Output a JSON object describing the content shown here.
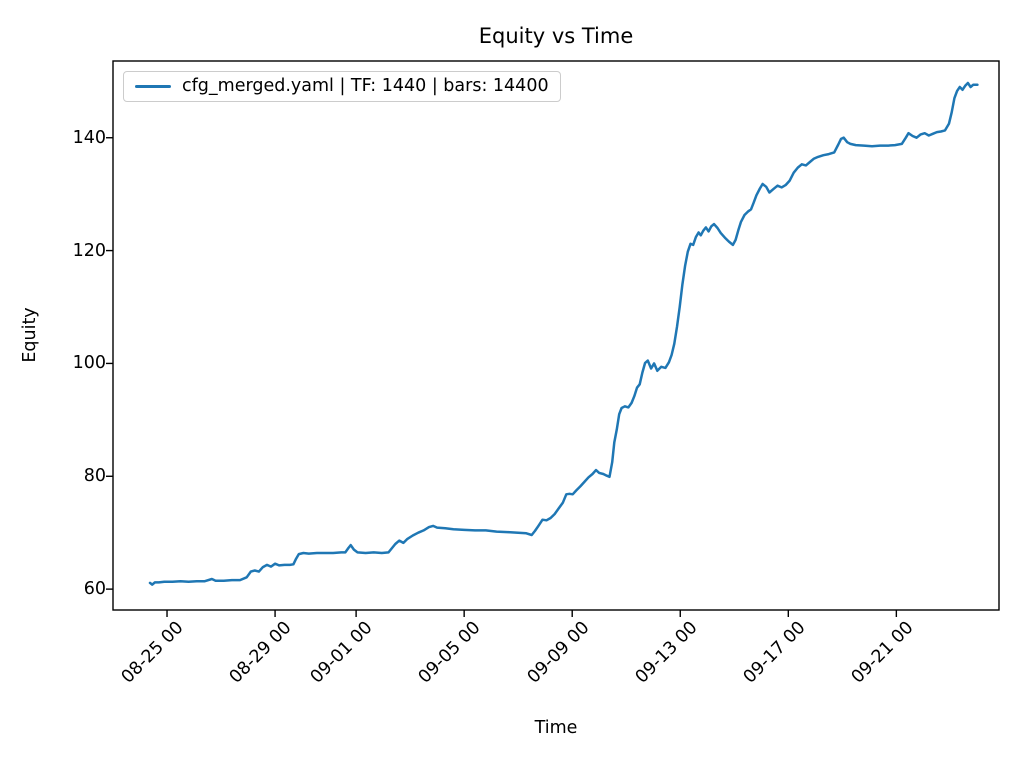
{
  "chart_data": {
    "type": "line",
    "title": "Equity vs Time",
    "xlabel": "Time",
    "ylabel": "Equity",
    "grid": false,
    "legend_position": "upper left",
    "x_axis": {
      "unit": "days relative to 08-25 00:00",
      "lim": [
        -2.0,
        30.8
      ],
      "ticks": [
        {
          "pos": 0,
          "label": "08-25 00"
        },
        {
          "pos": 4,
          "label": "08-29 00"
        },
        {
          "pos": 7,
          "label": "09-01 00"
        },
        {
          "pos": 11,
          "label": "09-05 00"
        },
        {
          "pos": 15,
          "label": "09-09 00"
        },
        {
          "pos": 19,
          "label": "09-13 00"
        },
        {
          "pos": 23,
          "label": "09-17 00"
        },
        {
          "pos": 27,
          "label": "09-21 00"
        }
      ]
    },
    "y_axis": {
      "lim": [
        56.3,
        153.6
      ],
      "ticks": [
        60,
        80,
        100,
        120,
        140
      ]
    },
    "series": [
      {
        "name": "cfg_merged.yaml | TF: 1440 | bars: 14400",
        "color": "#1f77b4",
        "points": [
          [
            -0.63,
            61.1
          ],
          [
            -0.55,
            60.8
          ],
          [
            -0.45,
            61.2
          ],
          [
            -0.3,
            61.2
          ],
          [
            -0.1,
            61.3
          ],
          [
            0.2,
            61.3
          ],
          [
            0.5,
            61.4
          ],
          [
            0.8,
            61.3
          ],
          [
            1.1,
            61.4
          ],
          [
            1.4,
            61.4
          ],
          [
            1.66,
            61.8
          ],
          [
            1.8,
            61.5
          ],
          [
            2.1,
            61.5
          ],
          [
            2.4,
            61.6
          ],
          [
            2.7,
            61.6
          ],
          [
            2.95,
            62.1
          ],
          [
            3.1,
            63.1
          ],
          [
            3.25,
            63.3
          ],
          [
            3.4,
            63.1
          ],
          [
            3.55,
            63.9
          ],
          [
            3.7,
            64.3
          ],
          [
            3.85,
            64.0
          ],
          [
            4.0,
            64.5
          ],
          [
            4.15,
            64.2
          ],
          [
            4.35,
            64.3
          ],
          [
            4.55,
            64.3
          ],
          [
            4.68,
            64.4
          ],
          [
            4.78,
            65.4
          ],
          [
            4.88,
            66.2
          ],
          [
            5.05,
            66.4
          ],
          [
            5.25,
            66.3
          ],
          [
            5.55,
            66.4
          ],
          [
            5.85,
            66.4
          ],
          [
            6.15,
            66.4
          ],
          [
            6.45,
            66.5
          ],
          [
            6.6,
            66.5
          ],
          [
            6.72,
            67.3
          ],
          [
            6.8,
            67.8
          ],
          [
            6.92,
            67.0
          ],
          [
            7.05,
            66.5
          ],
          [
            7.35,
            66.4
          ],
          [
            7.65,
            66.5
          ],
          [
            7.95,
            66.4
          ],
          [
            8.2,
            66.5
          ],
          [
            8.45,
            68.0
          ],
          [
            8.6,
            68.6
          ],
          [
            8.75,
            68.2
          ],
          [
            8.9,
            68.9
          ],
          [
            9.1,
            69.5
          ],
          [
            9.3,
            70.0
          ],
          [
            9.5,
            70.4
          ],
          [
            9.7,
            71.0
          ],
          [
            9.85,
            71.2
          ],
          [
            10.0,
            70.9
          ],
          [
            10.3,
            70.8
          ],
          [
            10.6,
            70.6
          ],
          [
            11.0,
            70.5
          ],
          [
            11.4,
            70.4
          ],
          [
            11.8,
            70.4
          ],
          [
            12.2,
            70.2
          ],
          [
            12.6,
            70.1
          ],
          [
            13.0,
            70.0
          ],
          [
            13.3,
            69.9
          ],
          [
            13.5,
            69.6
          ],
          [
            13.62,
            70.3
          ],
          [
            13.75,
            71.2
          ],
          [
            13.9,
            72.3
          ],
          [
            14.05,
            72.2
          ],
          [
            14.2,
            72.6
          ],
          [
            14.35,
            73.3
          ],
          [
            14.5,
            74.3
          ],
          [
            14.65,
            75.3
          ],
          [
            14.78,
            76.8
          ],
          [
            14.9,
            76.9
          ],
          [
            15.02,
            76.8
          ],
          [
            15.15,
            77.5
          ],
          [
            15.3,
            78.2
          ],
          [
            15.45,
            79.0
          ],
          [
            15.6,
            79.8
          ],
          [
            15.75,
            80.4
          ],
          [
            15.88,
            81.1
          ],
          [
            16.0,
            80.6
          ],
          [
            16.15,
            80.4
          ],
          [
            16.28,
            80.1
          ],
          [
            16.38,
            79.9
          ],
          [
            16.48,
            82.5
          ],
          [
            16.56,
            86.0
          ],
          [
            16.65,
            88.3
          ],
          [
            16.74,
            91.0
          ],
          [
            16.83,
            92.1
          ],
          [
            16.95,
            92.4
          ],
          [
            17.08,
            92.2
          ],
          [
            17.2,
            93.0
          ],
          [
            17.3,
            94.2
          ],
          [
            17.4,
            95.7
          ],
          [
            17.5,
            96.3
          ],
          [
            17.6,
            98.4
          ],
          [
            17.7,
            100.1
          ],
          [
            17.8,
            100.5
          ],
          [
            17.92,
            99.1
          ],
          [
            18.03,
            100.0
          ],
          [
            18.15,
            98.7
          ],
          [
            18.3,
            99.4
          ],
          [
            18.45,
            99.2
          ],
          [
            18.58,
            100.2
          ],
          [
            18.68,
            101.5
          ],
          [
            18.78,
            103.5
          ],
          [
            18.88,
            106.5
          ],
          [
            18.98,
            110.0
          ],
          [
            19.08,
            114.0
          ],
          [
            19.18,
            117.3
          ],
          [
            19.28,
            119.8
          ],
          [
            19.38,
            121.2
          ],
          [
            19.48,
            121.0
          ],
          [
            19.58,
            122.4
          ],
          [
            19.68,
            123.2
          ],
          [
            19.76,
            122.7
          ],
          [
            19.85,
            123.5
          ],
          [
            19.95,
            124.1
          ],
          [
            20.05,
            123.4
          ],
          [
            20.15,
            124.3
          ],
          [
            20.25,
            124.7
          ],
          [
            20.38,
            124.0
          ],
          [
            20.5,
            123.1
          ],
          [
            20.65,
            122.3
          ],
          [
            20.8,
            121.6
          ],
          [
            20.95,
            121.0
          ],
          [
            21.05,
            121.9
          ],
          [
            21.15,
            123.6
          ],
          [
            21.25,
            125.1
          ],
          [
            21.38,
            126.3
          ],
          [
            21.5,
            126.9
          ],
          [
            21.62,
            127.3
          ],
          [
            21.72,
            128.5
          ],
          [
            21.82,
            129.8
          ],
          [
            21.95,
            131.0
          ],
          [
            22.05,
            131.8
          ],
          [
            22.18,
            131.3
          ],
          [
            22.3,
            130.3
          ],
          [
            22.45,
            130.9
          ],
          [
            22.6,
            131.5
          ],
          [
            22.75,
            131.2
          ],
          [
            22.9,
            131.6
          ],
          [
            23.05,
            132.4
          ],
          [
            23.2,
            133.8
          ],
          [
            23.35,
            134.7
          ],
          [
            23.5,
            135.3
          ],
          [
            23.65,
            135.1
          ],
          [
            23.8,
            135.7
          ],
          [
            23.95,
            136.3
          ],
          [
            24.1,
            136.6
          ],
          [
            24.3,
            136.9
          ],
          [
            24.5,
            137.1
          ],
          [
            24.7,
            137.4
          ],
          [
            24.85,
            138.8
          ],
          [
            24.95,
            139.8
          ],
          [
            25.05,
            140.0
          ],
          [
            25.18,
            139.2
          ],
          [
            25.3,
            138.9
          ],
          [
            25.5,
            138.7
          ],
          [
            25.8,
            138.6
          ],
          [
            26.1,
            138.5
          ],
          [
            26.4,
            138.6
          ],
          [
            26.7,
            138.6
          ],
          [
            26.95,
            138.7
          ],
          [
            27.2,
            138.9
          ],
          [
            27.35,
            140.0
          ],
          [
            27.45,
            140.8
          ],
          [
            27.6,
            140.3
          ],
          [
            27.75,
            140.0
          ],
          [
            27.9,
            140.6
          ],
          [
            28.05,
            140.8
          ],
          [
            28.2,
            140.4
          ],
          [
            28.35,
            140.7
          ],
          [
            28.5,
            141.0
          ],
          [
            28.65,
            141.1
          ],
          [
            28.8,
            141.3
          ],
          [
            28.95,
            142.5
          ],
          [
            29.05,
            144.5
          ],
          [
            29.15,
            147.0
          ],
          [
            29.25,
            148.3
          ],
          [
            29.35,
            149.0
          ],
          [
            29.45,
            148.5
          ],
          [
            29.55,
            149.2
          ],
          [
            29.65,
            149.7
          ],
          [
            29.75,
            149.0
          ],
          [
            29.85,
            149.4
          ],
          [
            30.0,
            149.4
          ]
        ]
      }
    ]
  }
}
